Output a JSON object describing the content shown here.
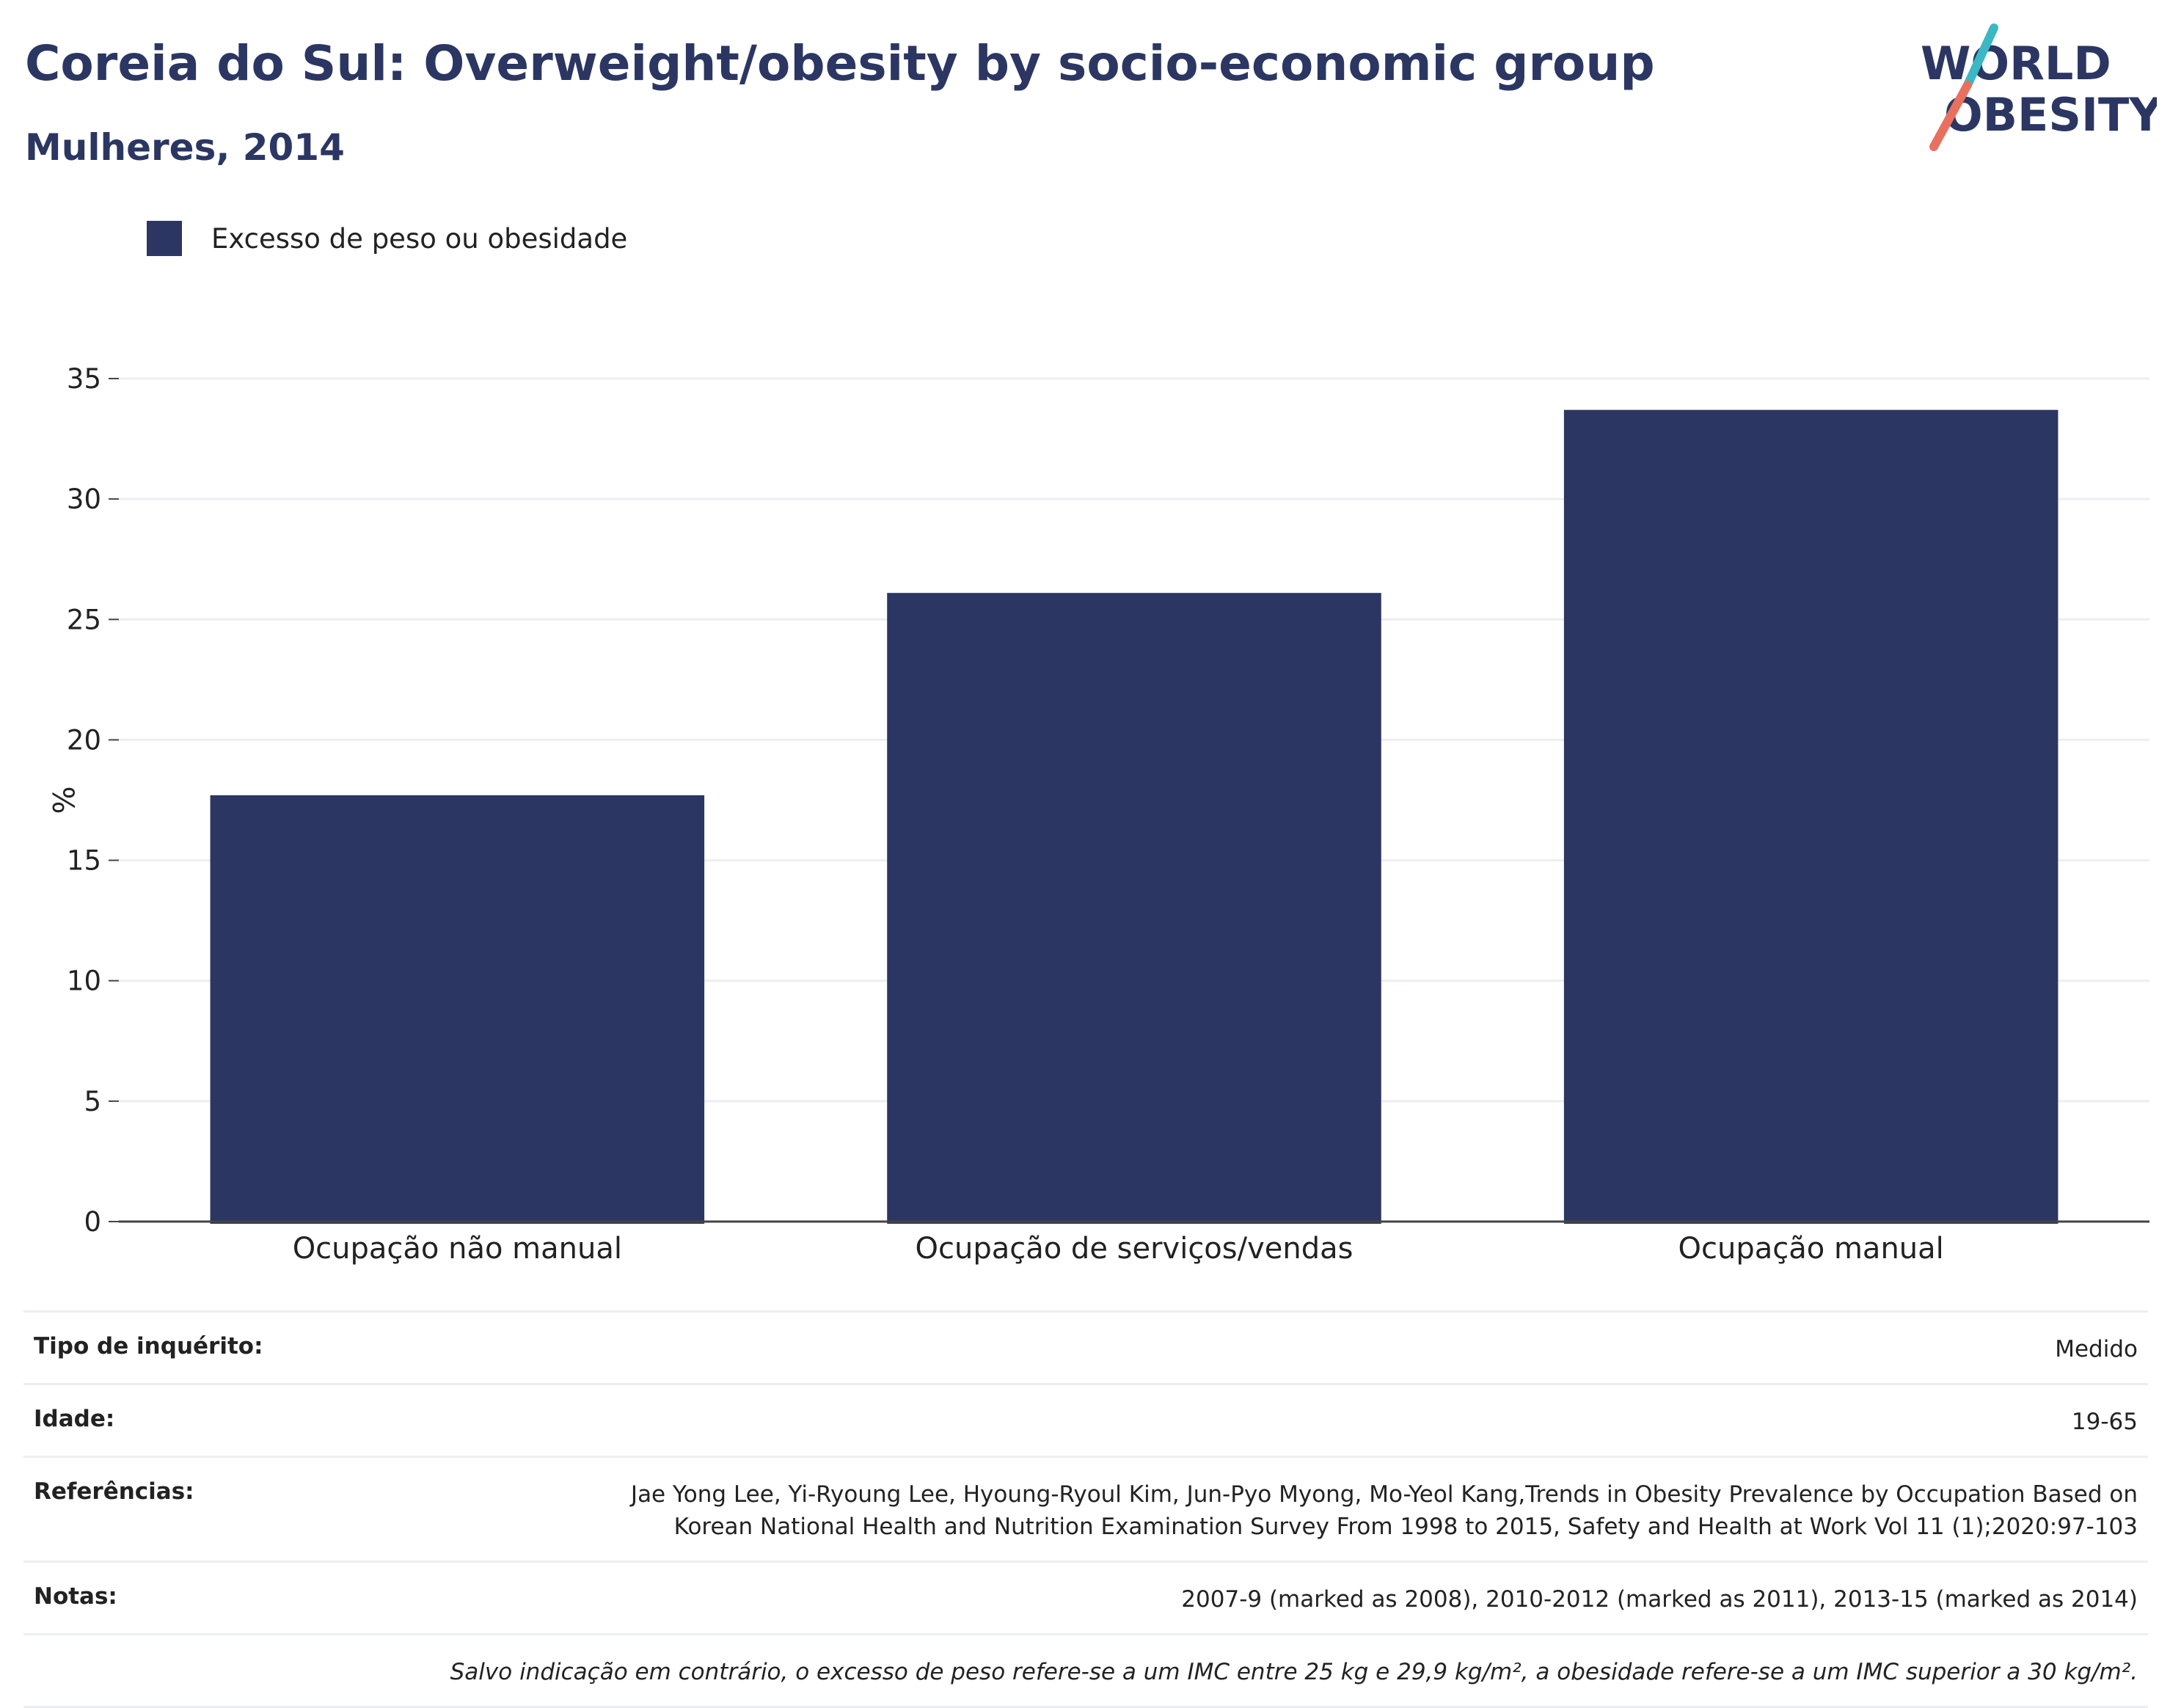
{
  "header": {
    "title": "Coreia do Sul: Overweight/obesity by socio-economic group",
    "subtitle": "Mulheres, 2014"
  },
  "logo": {
    "line1": "WORLD",
    "line2": "OBESITY",
    "colors": {
      "text": "#2b3663",
      "slash_top": "#3bb8c4",
      "slash_bottom": "#e8705f"
    }
  },
  "colors": {
    "bar": "#2b3663",
    "grid": "#eceef3",
    "axis": "#444444"
  },
  "chart_data": {
    "type": "bar",
    "categories": [
      "Ocupação não manual",
      "Ocupação de serviços/vendas",
      "Ocupação manual"
    ],
    "series": [
      {
        "name": "Excesso de peso ou obesidade",
        "values": [
          17.7,
          26.1,
          33.7
        ]
      }
    ],
    "ylabel": "%",
    "ylim": [
      0,
      35
    ],
    "yticks": [
      0,
      5,
      10,
      15,
      20,
      25,
      30,
      35
    ],
    "grid": true,
    "legend": "top-left"
  },
  "info": {
    "rows": [
      {
        "key": "Tipo de inquérito:",
        "value": "Medido"
      },
      {
        "key": "Idade:",
        "value": "19-65"
      },
      {
        "key": "Referências:",
        "value_lines": [
          "Jae Yong Lee, Yi-Ryoung Lee, Hyoung-Ryoul Kim, Jun-Pyo Myong, Mo-Yeol Kang,Trends in Obesity Prevalence by Occupation Based on",
          "Korean National Health and Nutrition Examination Survey From 1998 to 2015, Safety and Health at Work Vol 11 (1);2020:97-103"
        ]
      },
      {
        "key": "Notas:",
        "value": "2007-9 (marked as 2008), 2010-2012 (marked as 2011), 2013-15 (marked as 2014)"
      }
    ],
    "footnote": "Salvo indicação em contrário, o excesso de peso refere-se a um IMC entre 25 kg e 29,9 kg/m², a obesidade refere-se a um IMC superior a 30 kg/m²."
  }
}
